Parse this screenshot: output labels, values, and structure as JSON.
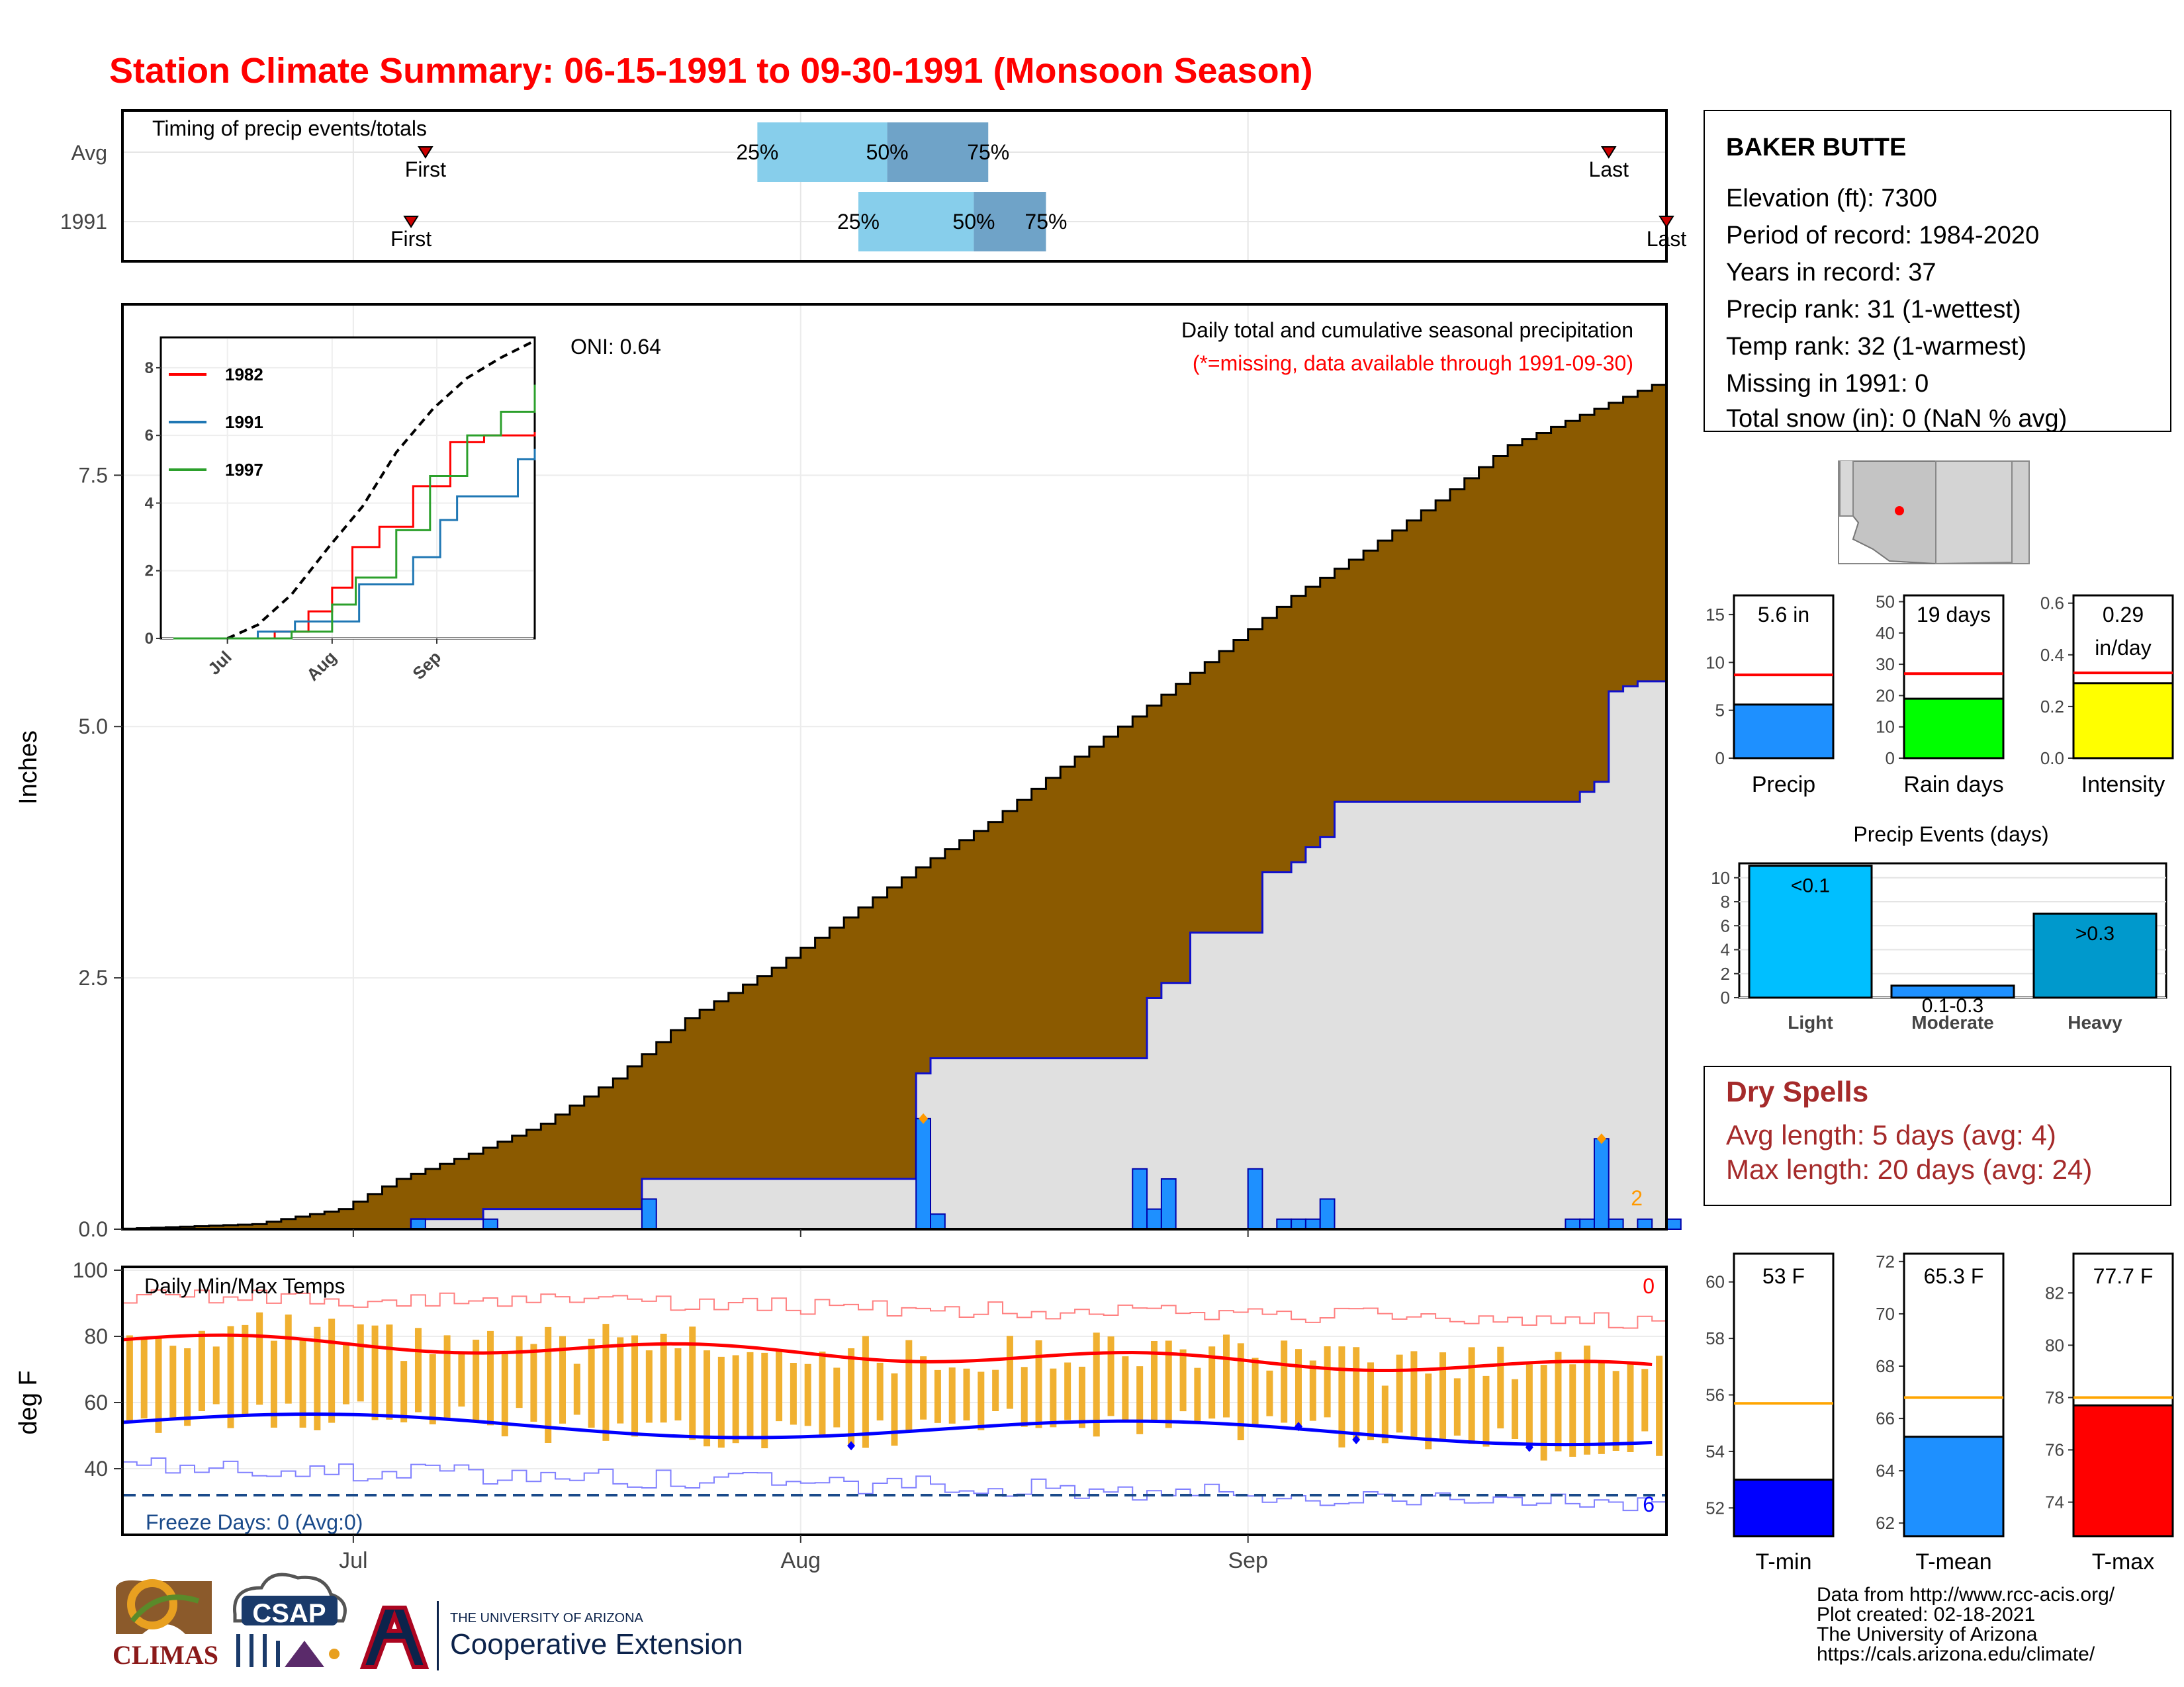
{
  "title": "Station Climate Summary: 06-15-1991 to 09-30-1991 (Monsoon Season)",
  "colors": {
    "title_red": "#ff0000",
    "cum_brown": "#8b5a00",
    "cum_gray": "#e0e0e0",
    "precip_blue": "#1e90ff",
    "tmax_red": "#ff0000",
    "tmin_blue": "#0000ff",
    "bar_orange": "#f0b030",
    "quartile_light": "#87ceeb",
    "quartile_dark": "#6fa3c8"
  },
  "timing": {
    "label": "Timing of precip events/totals",
    "rows": [
      {
        "name": "Avg",
        "first_label": "First",
        "last_label": "Last",
        "first_date": "1991-07-06",
        "last_date": "1991-09-26",
        "q25": "1991-07-29",
        "q50": "1991-08-07",
        "q75": "1991-08-14",
        "q25_label": "25%",
        "q50_label": "50%",
        "q75_label": "75%"
      },
      {
        "name": "1991",
        "first_label": "First",
        "last_label": "Last",
        "first_date": "1991-07-05",
        "last_date": "1991-09-30",
        "q25": "1991-08-05",
        "q50": "1991-08-13",
        "q75": "1991-08-18",
        "q25_label": "25%",
        "q50_label": "50%",
        "q75_label": "75%"
      }
    ]
  },
  "main": {
    "ylabel": "Inches",
    "oni": "ONI: 0.64",
    "caption": "Daily total and cumulative seasonal precipitation",
    "caption_note": "(*=missing, data available through 1991-09-30)",
    "corner_count": "2",
    "x_ticks": [
      "Jul",
      "Aug",
      "Sep"
    ]
  },
  "inset": {
    "legend": [
      "1982",
      "1991",
      "1997"
    ],
    "x_ticks": [
      "Jul",
      "Aug",
      "Sep"
    ],
    "y_ticks": [
      "0",
      "2",
      "4",
      "6",
      "8"
    ]
  },
  "temps": {
    "label": "Daily Min/Max Temps",
    "ylabel": "deg F",
    "freeze": "Freeze Days: 0 (Avg:0)",
    "count_top": "0",
    "count_bottom": "6",
    "x_ticks": [
      "Jul",
      "Aug",
      "Sep"
    ]
  },
  "station": {
    "name": "BAKER BUTTE",
    "lines": [
      "Elevation (ft): 7300",
      "Period of record: 1984-2020",
      "Years in record: 37",
      "Precip rank: 31 (1-wettest)",
      "Temp rank: 32 (1-warmest)",
      "Missing in 1991: 0",
      "Total snow (in): 0 (NaN % avg)"
    ]
  },
  "totals": [
    {
      "name": "Precip",
      "label": "5.6 in",
      "value": 5.6,
      "avg": 8.7,
      "ymax": 17,
      "ticks": [
        0,
        5,
        10,
        15
      ],
      "color": "#1e90ff"
    },
    {
      "name": "Rain days",
      "label": "19 days",
      "value": 19,
      "avg": 27,
      "ymax": 52,
      "ticks": [
        0,
        10,
        20,
        30,
        40,
        50
      ],
      "color": "#00ff00"
    },
    {
      "name": "Intensity",
      "label": "0.29",
      "label2": "in/day",
      "value": 0.29,
      "avg": 0.33,
      "ymax": 0.63,
      "ticks": [
        "0.0",
        "0.2",
        "0.4",
        "0.6"
      ],
      "color": "#ffff00"
    }
  ],
  "events": {
    "title": "Precip Events (days)",
    "categories": [
      "Light",
      "Moderate",
      "Heavy"
    ],
    "labels": [
      "<0.1",
      "0.1-0.3",
      ">0.3"
    ],
    "values": [
      11,
      1,
      7
    ],
    "colors": [
      "#00bfff",
      "#1e90ff",
      "#0099cc"
    ],
    "ticks": [
      0,
      2,
      4,
      6,
      8,
      10
    ]
  },
  "dry": {
    "title": "Dry Spells",
    "avg": "Avg length: 5 days (avg: 4)",
    "max": "Max length: 20 days (avg: 24)"
  },
  "temp_summary": [
    {
      "name": "T-min",
      "label": "53 F",
      "value": 53,
      "avg": 55.7,
      "ymin": 51,
      "ymax": 61,
      "ticks": [
        52,
        54,
        56,
        58,
        60
      ],
      "color": "#0000ff"
    },
    {
      "name": "T-mean",
      "label": "65.3 F",
      "value": 65.3,
      "avg": 66.8,
      "ymin": 61.5,
      "ymax": 72.3,
      "ticks": [
        62,
        64,
        66,
        68,
        70,
        72
      ],
      "color": "#1e90ff"
    },
    {
      "name": "T-max",
      "label": "77.7 F",
      "value": 77.7,
      "avg": 78,
      "ymin": 72.7,
      "ymax": 83.5,
      "ticks": [
        74,
        76,
        78,
        80,
        82
      ],
      "color": "#ff0000"
    }
  ],
  "footer": {
    "lines": [
      "Data from http://www.rcc-acis.org/",
      "Plot created: 02-18-2021",
      "The University of Arizona",
      "https://cals.arizona.edu/climate/"
    ],
    "logo_climas": "CLIMAS",
    "logo_csap": "CSAP",
    "logo_ua_top": "THE UNIVERSITY OF ARIZONA",
    "logo_ua_bottom": "Cooperative Extension"
  },
  "chart_data": [
    {
      "type": "area",
      "title": "Daily total and cumulative seasonal precipitation",
      "ylabel": "Inches",
      "ylim": [
        0,
        9.2
      ],
      "x_range": [
        "1991-06-15",
        "1991-09-30"
      ],
      "yticks": [
        0.0,
        2.5,
        5.0,
        7.5
      ],
      "series": [
        {
          "name": "Avg cumulative",
          "points": [
            [
              "06-15",
              0
            ],
            [
              "06-25",
              0.05
            ],
            [
              "07-01",
              0.2
            ],
            [
              "07-05",
              0.5
            ],
            [
              "07-10",
              0.75
            ],
            [
              "07-15",
              1.05
            ],
            [
              "07-20",
              1.5
            ],
            [
              "07-25",
              2.1
            ],
            [
              "07-31",
              2.6
            ],
            [
              "08-05",
              3.1
            ],
            [
              "08-10",
              3.6
            ],
            [
              "08-15",
              4.05
            ],
            [
              "08-20",
              4.6
            ],
            [
              "08-25",
              5.1
            ],
            [
              "08-31",
              5.75
            ],
            [
              "09-05",
              6.3
            ],
            [
              "09-10",
              6.75
            ],
            [
              "09-15",
              7.25
            ],
            [
              "09-20",
              7.8
            ],
            [
              "09-25",
              8.1
            ],
            [
              "09-30",
              8.4
            ]
          ]
        },
        {
          "name": "1991 cumulative",
          "points": [
            [
              "06-15",
              0
            ],
            [
              "07-05",
              0.1
            ],
            [
              "07-10",
              0.2
            ],
            [
              "07-20",
              0.2
            ],
            [
              "07-21",
              0.5
            ],
            [
              "08-09",
              0.5
            ],
            [
              "08-09",
              1.55
            ],
            [
              "08-10",
              1.7
            ],
            [
              "08-24",
              1.7
            ],
            [
              "08-25",
              2.3
            ],
            [
              "08-26",
              2.45
            ],
            [
              "08-28",
              2.95
            ],
            [
              "09-01",
              2.95
            ],
            [
              "09-02",
              3.55
            ],
            [
              "09-04",
              3.65
            ],
            [
              "09-05",
              3.8
            ],
            [
              "09-06",
              3.9
            ],
            [
              "09-07",
              4.25
            ],
            [
              "09-23",
              4.25
            ],
            [
              "09-24",
              4.35
            ],
            [
              "09-25",
              4.45
            ],
            [
              "09-26",
              5.35
            ],
            [
              "09-27",
              5.4
            ],
            [
              "09-28",
              5.45
            ],
            [
              "09-30",
              5.6
            ]
          ]
        },
        {
          "name": "1991 daily",
          "points": [
            [
              "07-05",
              0.1
            ],
            [
              "07-10",
              0.1
            ],
            [
              "07-21",
              0.3
            ],
            [
              "08-09",
              1.1
            ],
            [
              "08-10",
              0.15
            ],
            [
              "08-24",
              0.6
            ],
            [
              "08-25",
              0.2
            ],
            [
              "08-26",
              0.5
            ],
            [
              "09-01",
              0.6
            ],
            [
              "09-03",
              0.1
            ],
            [
              "09-04",
              0.1
            ],
            [
              "09-05",
              0.1
            ],
            [
              "09-06",
              0.3
            ],
            [
              "09-23",
              0.1
            ],
            [
              "09-24",
              0.1
            ],
            [
              "09-25",
              0.9
            ],
            [
              "09-26",
              0.1
            ],
            [
              "09-28",
              0.1
            ],
            [
              "09-30",
              0.1
            ]
          ]
        }
      ]
    },
    {
      "type": "line",
      "title": "",
      "ylim": [
        0,
        8.8
      ],
      "series": [
        {
          "name": "Avg (dashed)",
          "points": [
            [
              "07-01",
              0
            ],
            [
              "07-10",
              0.4
            ],
            [
              "07-20",
              1.3
            ],
            [
              "07-31",
              2.7
            ],
            [
              "08-10",
              3.9
            ],
            [
              "08-20",
              5.5
            ],
            [
              "08-31",
              6.8
            ],
            [
              "09-10",
              7.7
            ],
            [
              "09-20",
              8.3
            ],
            [
              "09-30",
              8.8
            ]
          ]
        },
        {
          "name": "1982",
          "points": [
            [
              "06-15",
              0
            ],
            [
              "07-15",
              0.2
            ],
            [
              "07-25",
              0.8
            ],
            [
              "08-01",
              1.5
            ],
            [
              "08-07",
              2.7
            ],
            [
              "08-15",
              3.3
            ],
            [
              "08-25",
              4.5
            ],
            [
              "09-05",
              5.8
            ],
            [
              "09-15",
              6.0
            ],
            [
              "09-30",
              6.1
            ]
          ]
        },
        {
          "name": "1991",
          "points": [
            [
              "06-15",
              0
            ],
            [
              "07-10",
              0.2
            ],
            [
              "07-21",
              0.5
            ],
            [
              "08-09",
              1.6
            ],
            [
              "08-25",
              2.4
            ],
            [
              "09-02",
              3.5
            ],
            [
              "09-07",
              4.2
            ],
            [
              "09-25",
              5.3
            ],
            [
              "09-30",
              5.6
            ]
          ]
        },
        {
          "name": "1997",
          "points": [
            [
              "06-15",
              0
            ],
            [
              "07-20",
              0.2
            ],
            [
              "08-01",
              1.0
            ],
            [
              "08-08",
              1.8
            ],
            [
              "08-20",
              3.2
            ],
            [
              "08-30",
              4.8
            ],
            [
              "09-10",
              6.0
            ],
            [
              "09-20",
              6.7
            ],
            [
              "09-30",
              7.5
            ]
          ]
        }
      ]
    },
    {
      "type": "line",
      "title": "Daily Min/Max Temps",
      "ylabel": "deg F",
      "ylim": [
        20,
        101
      ],
      "yticks": [
        40,
        60,
        80,
        100
      ],
      "series": [
        {
          "name": "Avg Tmax",
          "start": 79,
          "end": 70
        },
        {
          "name": "Avg Tmin",
          "start": 54,
          "end": 50
        },
        {
          "name": "Freeze threshold",
          "value": 32
        }
      ]
    }
  ]
}
